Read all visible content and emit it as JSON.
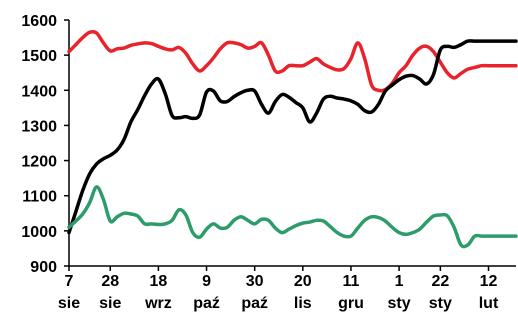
{
  "chart_data": {
    "type": "line",
    "title": "",
    "xlabel": "",
    "ylabel": "",
    "ylim": [
      900,
      1600
    ],
    "yticks": [
      900,
      1000,
      1100,
      1200,
      1300,
      1400,
      1500,
      1600
    ],
    "grid": false,
    "legend": "none",
    "x_range": [
      0,
      65
    ],
    "xticks": [
      {
        "x": 0,
        "day": "7",
        "month": "sie"
      },
      {
        "x": 6,
        "day": "28",
        "month": "sie"
      },
      {
        "x": 13,
        "day": "18",
        "month": "wrz"
      },
      {
        "x": 20,
        "day": "9",
        "month": "paź"
      },
      {
        "x": 27,
        "day": "30",
        "month": "paź"
      },
      {
        "x": 34,
        "day": "20",
        "month": "lis"
      },
      {
        "x": 41,
        "day": "11",
        "month": "gru"
      },
      {
        "x": 48,
        "day": "1",
        "month": "sty"
      },
      {
        "x": 54,
        "day": "22",
        "month": "sty"
      },
      {
        "x": 61,
        "day": "12",
        "month": "lut"
      }
    ],
    "series": [
      {
        "color": "#e8232c",
        "x": [
          0,
          1,
          2,
          3,
          4,
          5,
          6,
          7,
          8,
          9,
          10,
          11,
          12,
          13,
          14,
          15,
          16,
          17,
          18,
          19,
          20,
          21,
          22,
          23,
          24,
          25,
          26,
          27,
          28,
          29,
          30,
          31,
          32,
          33,
          34,
          35,
          36,
          37,
          38,
          39,
          40,
          41,
          42,
          43,
          44,
          45,
          46,
          47,
          48,
          49,
          50,
          51,
          52,
          53,
          54,
          55,
          56,
          57,
          58,
          59,
          60,
          61,
          62,
          63,
          64,
          65
        ],
        "values": [
          1510,
          1530,
          1550,
          1565,
          1563,
          1535,
          1512,
          1518,
          1520,
          1528,
          1532,
          1535,
          1533,
          1525,
          1518,
          1515,
          1522,
          1505,
          1475,
          1455,
          1470,
          1492,
          1518,
          1535,
          1535,
          1530,
          1520,
          1525,
          1535,
          1500,
          1455,
          1455,
          1470,
          1470,
          1470,
          1480,
          1490,
          1475,
          1465,
          1458,
          1462,
          1490,
          1535,
          1490,
          1415,
          1400,
          1402,
          1420,
          1450,
          1470,
          1500,
          1520,
          1525,
          1510,
          1480,
          1450,
          1435,
          1448,
          1460,
          1465,
          1470,
          1470,
          1470,
          1470,
          1470,
          1470
        ]
      },
      {
        "color": "#000000",
        "x": [
          0,
          1,
          2,
          3,
          4,
          5,
          6,
          7,
          8,
          9,
          10,
          11,
          12,
          13,
          14,
          15,
          16,
          17,
          18,
          19,
          20,
          21,
          22,
          23,
          24,
          25,
          26,
          27,
          28,
          29,
          30,
          31,
          32,
          33,
          34,
          35,
          36,
          37,
          38,
          39,
          40,
          41,
          42,
          43,
          44,
          45,
          46,
          47,
          48,
          49,
          50,
          51,
          52,
          53,
          54,
          55,
          56,
          57,
          58,
          59,
          60,
          61,
          62,
          63,
          64,
          65
        ],
        "values": [
          995,
          1055,
          1115,
          1162,
          1190,
          1205,
          1215,
          1230,
          1260,
          1310,
          1345,
          1385,
          1418,
          1432,
          1390,
          1328,
          1322,
          1325,
          1320,
          1330,
          1395,
          1398,
          1370,
          1368,
          1382,
          1393,
          1400,
          1398,
          1360,
          1335,
          1368,
          1388,
          1380,
          1365,
          1350,
          1310,
          1335,
          1375,
          1383,
          1378,
          1375,
          1370,
          1360,
          1342,
          1338,
          1360,
          1398,
          1415,
          1430,
          1440,
          1442,
          1432,
          1418,
          1445,
          1515,
          1525,
          1522,
          1530,
          1540,
          1540,
          1540,
          1540,
          1540,
          1540,
          1540,
          1540
        ]
      },
      {
        "color": "#2e9c6a",
        "x": [
          0,
          1,
          2,
          3,
          4,
          5,
          6,
          7,
          8,
          9,
          10,
          11,
          12,
          13,
          14,
          15,
          16,
          17,
          18,
          19,
          20,
          21,
          22,
          23,
          24,
          25,
          26,
          27,
          28,
          29,
          30,
          31,
          32,
          33,
          34,
          35,
          36,
          37,
          38,
          39,
          40,
          41,
          42,
          43,
          44,
          45,
          46,
          47,
          48,
          49,
          50,
          51,
          52,
          53,
          54,
          55,
          56,
          57,
          58,
          59,
          60,
          61,
          62,
          63,
          64,
          65
        ],
        "values": [
          1010,
          1028,
          1048,
          1080,
          1125,
          1090,
          1028,
          1040,
          1050,
          1048,
          1042,
          1020,
          1020,
          1018,
          1020,
          1030,
          1060,
          1045,
          995,
          982,
          1005,
          1020,
          1008,
          1010,
          1030,
          1040,
          1030,
          1020,
          1033,
          1030,
          1008,
          995,
          1005,
          1015,
          1022,
          1025,
          1030,
          1028,
          1012,
          995,
          985,
          985,
          1008,
          1030,
          1040,
          1038,
          1028,
          1010,
          995,
          990,
          995,
          1005,
          1025,
          1042,
          1045,
          1043,
          1010,
          960,
          960,
          985,
          985,
          985,
          985,
          985,
          985,
          985
        ]
      }
    ]
  }
}
